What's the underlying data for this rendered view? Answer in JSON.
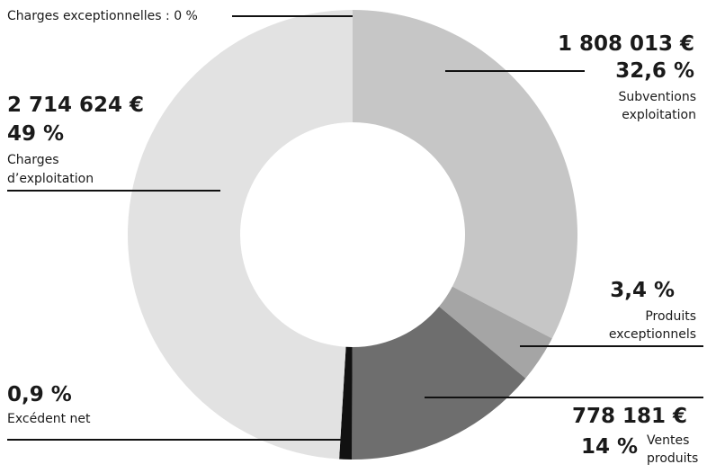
{
  "chart_data": {
    "type": "pie",
    "donut": true,
    "colors": {
      "subventions": "#c6c6c6",
      "produits_exceptionnels": "#a5a5a5",
      "ventes": "#6e6e6e",
      "excedent": "#111111",
      "charges_exploitation": "#e2e2e2",
      "charges_exceptionnelles": "#e2e2e2",
      "leader": "#111111"
    },
    "slices": [
      {
        "key": "subventions",
        "percent": 32.6,
        "value": "1 808 013 €",
        "pct_label": "32,6 %",
        "desc1": "Subventions",
        "desc2": "exploitation"
      },
      {
        "key": "produits_exceptionnels",
        "percent": 3.4,
        "pct_label": "3,4 %",
        "desc1": "Produits",
        "desc2": "exceptionnels"
      },
      {
        "key": "ventes",
        "percent": 14,
        "value": "778 181 €",
        "pct_label": "14 %",
        "desc1": "Ventes",
        "desc2": "produits"
      },
      {
        "key": "excedent",
        "percent": 0.9,
        "pct_label": "0,9 %",
        "desc1": "Excédent net"
      },
      {
        "key": "charges_exploitation",
        "percent": 49,
        "value": "2 714 624 €",
        "pct_label": "49 %",
        "desc1": "Charges",
        "desc2": "d’exploitation"
      },
      {
        "key": "charges_exceptionnelles",
        "percent": 0,
        "label": "Charges exceptionnelles : 0 %"
      }
    ]
  }
}
